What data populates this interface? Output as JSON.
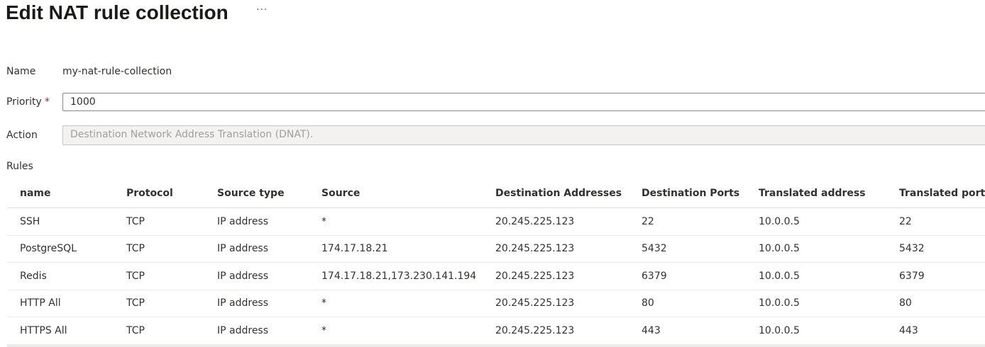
{
  "header": {
    "title": "Edit NAT rule collection",
    "more_icon": "ellipsis-icon",
    "more_label": "···"
  },
  "form": {
    "name_label": "Name",
    "name_value": "my-nat-rule-collection",
    "priority_label": "Priority",
    "required_mark": "*",
    "priority_value": "1000",
    "action_label": "Action",
    "action_value": "Destination Network Address Translation (DNAT).",
    "rules_label": "Rules"
  },
  "rules": {
    "columns": [
      "name",
      "Protocol",
      "Source type",
      "Source",
      "Destination Addresses",
      "Destination Ports",
      "Translated address",
      "Translated port"
    ],
    "rows": [
      [
        "SSH",
        "TCP",
        "IP address",
        "*",
        "20.245.225.123",
        "22",
        "10.0.0.5",
        "22"
      ],
      [
        "PostgreSQL",
        "TCP",
        "IP address",
        "174.17.18.21",
        "20.245.225.123",
        "5432",
        "10.0.0.5",
        "5432"
      ],
      [
        "Redis",
        "TCP",
        "IP address",
        "174.17.18.21,173.230.141.194",
        "20.245.225.123",
        "6379",
        "10.0.0.5",
        "6379"
      ],
      [
        "HTTP All",
        "TCP",
        "IP address",
        "*",
        "20.245.225.123",
        "80",
        "10.0.0.5",
        "80"
      ],
      [
        "HTTPS All",
        "TCP",
        "IP address",
        "*",
        "20.245.225.123",
        "443",
        "10.0.0.5",
        "443"
      ]
    ]
  }
}
